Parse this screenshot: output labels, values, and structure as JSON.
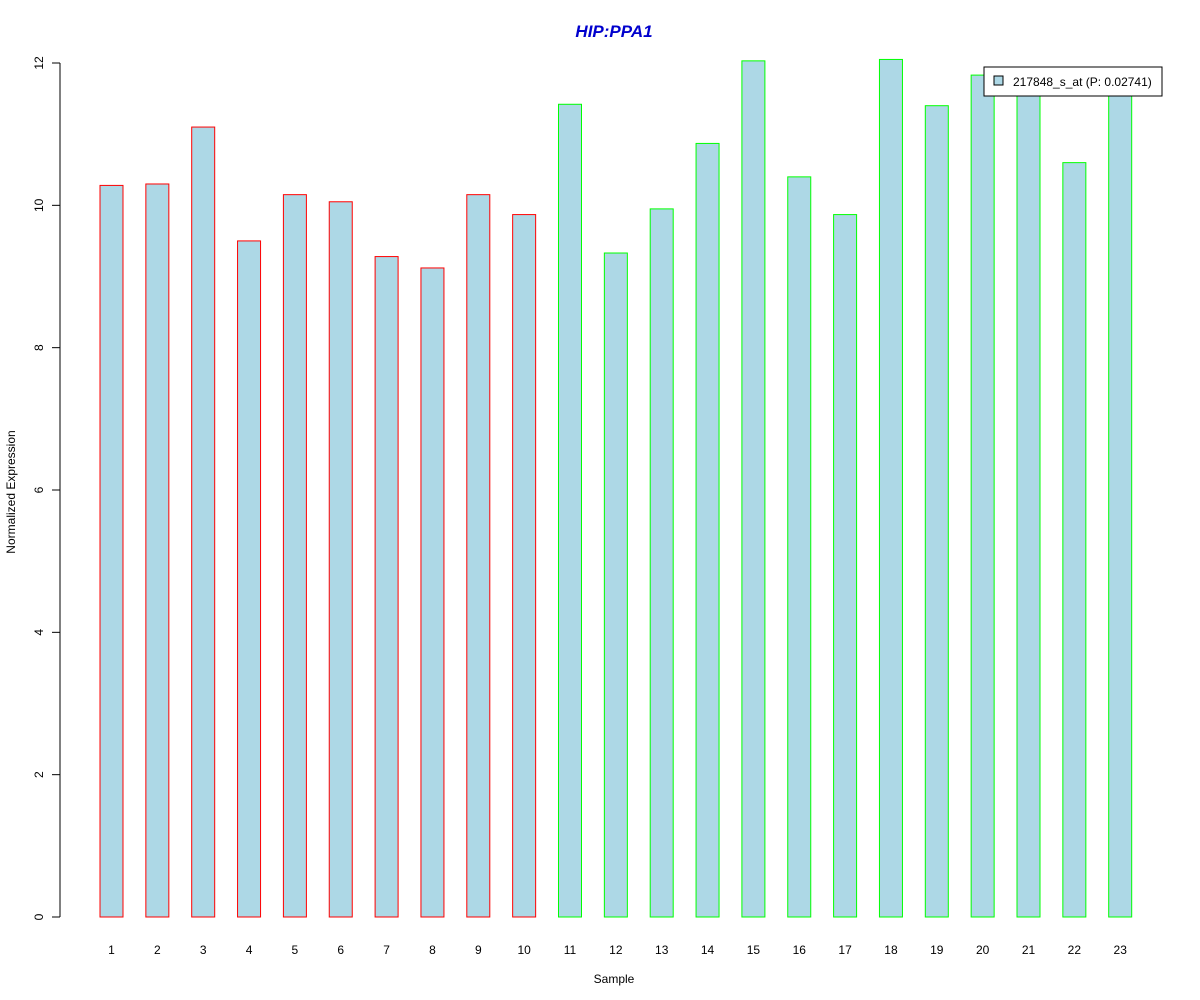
{
  "chart_data": {
    "type": "bar",
    "title": "HIP:PPA1",
    "xlabel": "Sample",
    "ylabel": "Normalized Expression",
    "ylim": [
      0,
      12
    ],
    "yticks": [
      0,
      2,
      4,
      6,
      8,
      10,
      12
    ],
    "categories": [
      "1",
      "2",
      "3",
      "4",
      "5",
      "6",
      "7",
      "8",
      "9",
      "10",
      "11",
      "12",
      "13",
      "14",
      "15",
      "16",
      "17",
      "18",
      "19",
      "20",
      "21",
      "22",
      "23"
    ],
    "series": [
      {
        "name": "217848_s_at (P: 0.02741)",
        "values": [
          10.28,
          10.3,
          11.1,
          9.5,
          10.15,
          10.05,
          9.28,
          9.12,
          10.15,
          9.87,
          11.42,
          9.33,
          9.95,
          10.87,
          12.03,
          10.4,
          9.87,
          12.05,
          11.4,
          11.83,
          11.63,
          10.6,
          11.63
        ],
        "group_of_each_bar": [
          "A",
          "A",
          "A",
          "A",
          "A",
          "A",
          "A",
          "A",
          "A",
          "A",
          "B",
          "B",
          "B",
          "B",
          "B",
          "B",
          "B",
          "B",
          "B",
          "B",
          "B",
          "B",
          "B"
        ]
      }
    ],
    "grid": false,
    "legend_position": "top-right",
    "colors": {
      "bar_fill": "#add8e6",
      "border_group_A": "#ff0000",
      "border_group_B": "#00ff00",
      "title": "#0000cd",
      "axis": "#000000"
    }
  }
}
